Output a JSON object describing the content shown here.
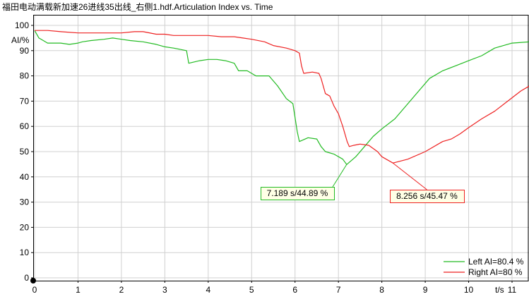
{
  "title": "福田电动满载新加速26进线35出线_右侧1.hdf.Articulation Index vs. Time",
  "chart_data": {
    "type": "line",
    "title": "福田电动满载新加速26进线35出线_右侧1.hdf.Articulation Index vs. Time",
    "xlabel": "t/s",
    "ylabel": "AI/%",
    "xlim": [
      0,
      11.4
    ],
    "ylim": [
      0,
      100
    ],
    "xticks": [
      0,
      1,
      2,
      3,
      4,
      5,
      6,
      7,
      8,
      9,
      10,
      11
    ],
    "yticks": [
      0,
      10,
      20,
      30,
      40,
      50,
      60,
      70,
      80,
      90,
      100
    ],
    "grid": true,
    "legend_position": "bottom-right",
    "series": [
      {
        "name": "Left AI=80.4 %",
        "color": "#22bb22",
        "x": [
          0,
          0.1,
          0.2,
          0.3,
          0.4,
          0.6,
          0.8,
          1.0,
          1.1,
          1.3,
          1.6,
          1.8,
          2.0,
          2.2,
          2.5,
          2.8,
          3.0,
          3.2,
          3.5,
          3.55,
          3.8,
          4.0,
          4.2,
          4.4,
          4.6,
          4.7,
          4.75,
          4.9,
          5.1,
          5.4,
          5.6,
          5.8,
          5.95,
          6.05,
          6.1,
          6.3,
          6.5,
          6.6,
          6.7,
          6.9,
          7.1,
          7.19,
          7.4,
          7.6,
          7.8,
          8.0,
          8.3,
          8.6,
          8.9,
          9.1,
          9.4,
          9.7,
          10.0,
          10.3,
          10.6,
          11.0,
          11.4
        ],
        "y": [
          98,
          95,
          94,
          93,
          93,
          93,
          92.5,
          93,
          93.5,
          94,
          94.5,
          95,
          94.5,
          94,
          93.5,
          92.5,
          91.5,
          91,
          90,
          85,
          86,
          86.5,
          86.5,
          86,
          85,
          82,
          82,
          82,
          80,
          80,
          76,
          71,
          69,
          58,
          54,
          55.5,
          55,
          52,
          50,
          49,
          47,
          44.89,
          48,
          52,
          56,
          59,
          63,
          69,
          75,
          79,
          82,
          84,
          86,
          88,
          91,
          93,
          93.5
        ]
      },
      {
        "name": "Right AI=80 %",
        "color": "#ee2222",
        "x": [
          0,
          0.3,
          0.6,
          1.0,
          1.5,
          2.0,
          2.3,
          2.5,
          2.8,
          3.0,
          3.2,
          3.5,
          4.0,
          4.3,
          4.6,
          4.8,
          5.0,
          5.3,
          5.5,
          5.8,
          6.0,
          6.1,
          6.15,
          6.2,
          6.4,
          6.55,
          6.6,
          6.7,
          6.8,
          6.9,
          7.0,
          7.1,
          7.2,
          7.25,
          7.35,
          7.5,
          7.7,
          7.9,
          8.0,
          8.256,
          8.6,
          9.0,
          9.4,
          9.6,
          9.8,
          10.0,
          10.3,
          10.6,
          10.9,
          11.2,
          11.4
        ],
        "y": [
          98,
          98,
          97.5,
          97,
          97,
          97,
          97.5,
          97.5,
          96.5,
          96.5,
          96,
          96,
          96,
          95.5,
          95.5,
          95,
          94.5,
          93.5,
          92,
          91,
          90,
          89,
          84,
          81,
          81.5,
          81,
          79,
          73,
          72,
          68,
          65,
          60,
          54,
          52,
          52.5,
          53,
          52.5,
          50,
          48,
          45.47,
          47,
          50,
          54,
          55,
          57,
          59.5,
          63,
          66,
          70,
          74,
          76
        ]
      }
    ],
    "annotations": [
      {
        "label": "7.189 s/44.89 %",
        "x": 7.189,
        "y": 44.89,
        "series": "Left AI=80.4 %"
      },
      {
        "label": "8.256 s/45.47 %",
        "x": 8.256,
        "y": 45.47,
        "series": "Right AI=80 %"
      }
    ]
  }
}
